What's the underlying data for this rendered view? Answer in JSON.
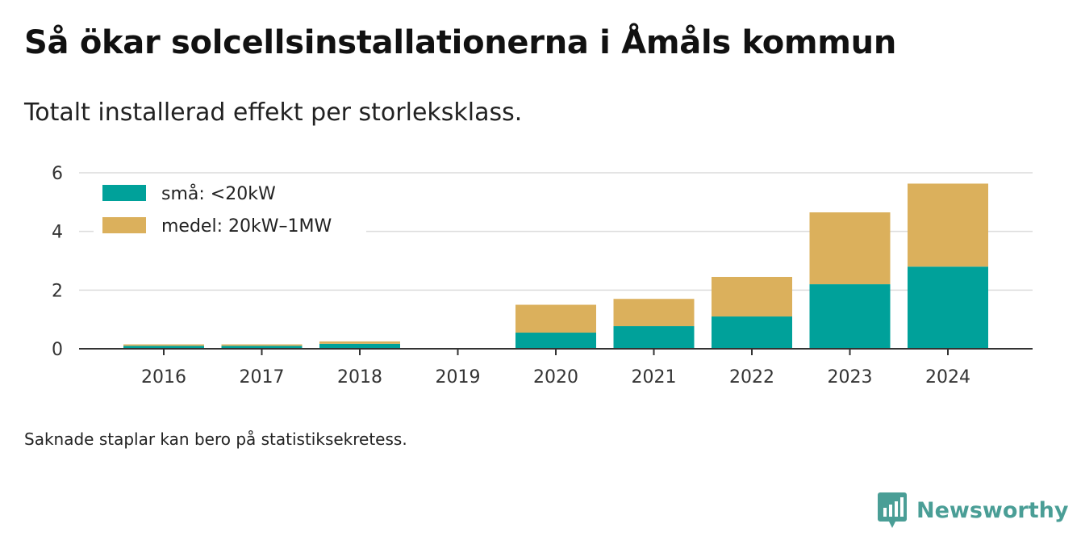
{
  "title": "Så ökar solcellsinstallationerna i Åmåls kommun",
  "subtitle": "Totalt installerad effekt per storleksklass.",
  "note": "Saknade staplar kan bero på statistiksekretess.",
  "brand": {
    "name": "Newsworthy",
    "icon": "newsworthy-logo-icon",
    "color": "#4a9e96"
  },
  "chart_data": {
    "type": "bar",
    "stacked": true,
    "title": "",
    "xlabel": "",
    "ylabel": "",
    "categories": [
      "2016",
      "2017",
      "2018",
      "2019",
      "2020",
      "2021",
      "2022",
      "2023",
      "2024"
    ],
    "series": [
      {
        "name": "små: <20kW",
        "color": "#00a19a",
        "values": [
          0.1,
          0.1,
          0.17,
          0,
          0.55,
          0.77,
          1.1,
          2.2,
          2.8
        ]
      },
      {
        "name": "medel: 20kW–1MW",
        "color": "#dbb05c",
        "values": [
          0.05,
          0.05,
          0.08,
          0,
          0.95,
          0.93,
          1.35,
          2.45,
          2.83
        ]
      }
    ],
    "ylim": [
      0,
      6
    ],
    "yticks": [
      0,
      2,
      4,
      6
    ],
    "grid": true,
    "legend_position": "top-left"
  }
}
